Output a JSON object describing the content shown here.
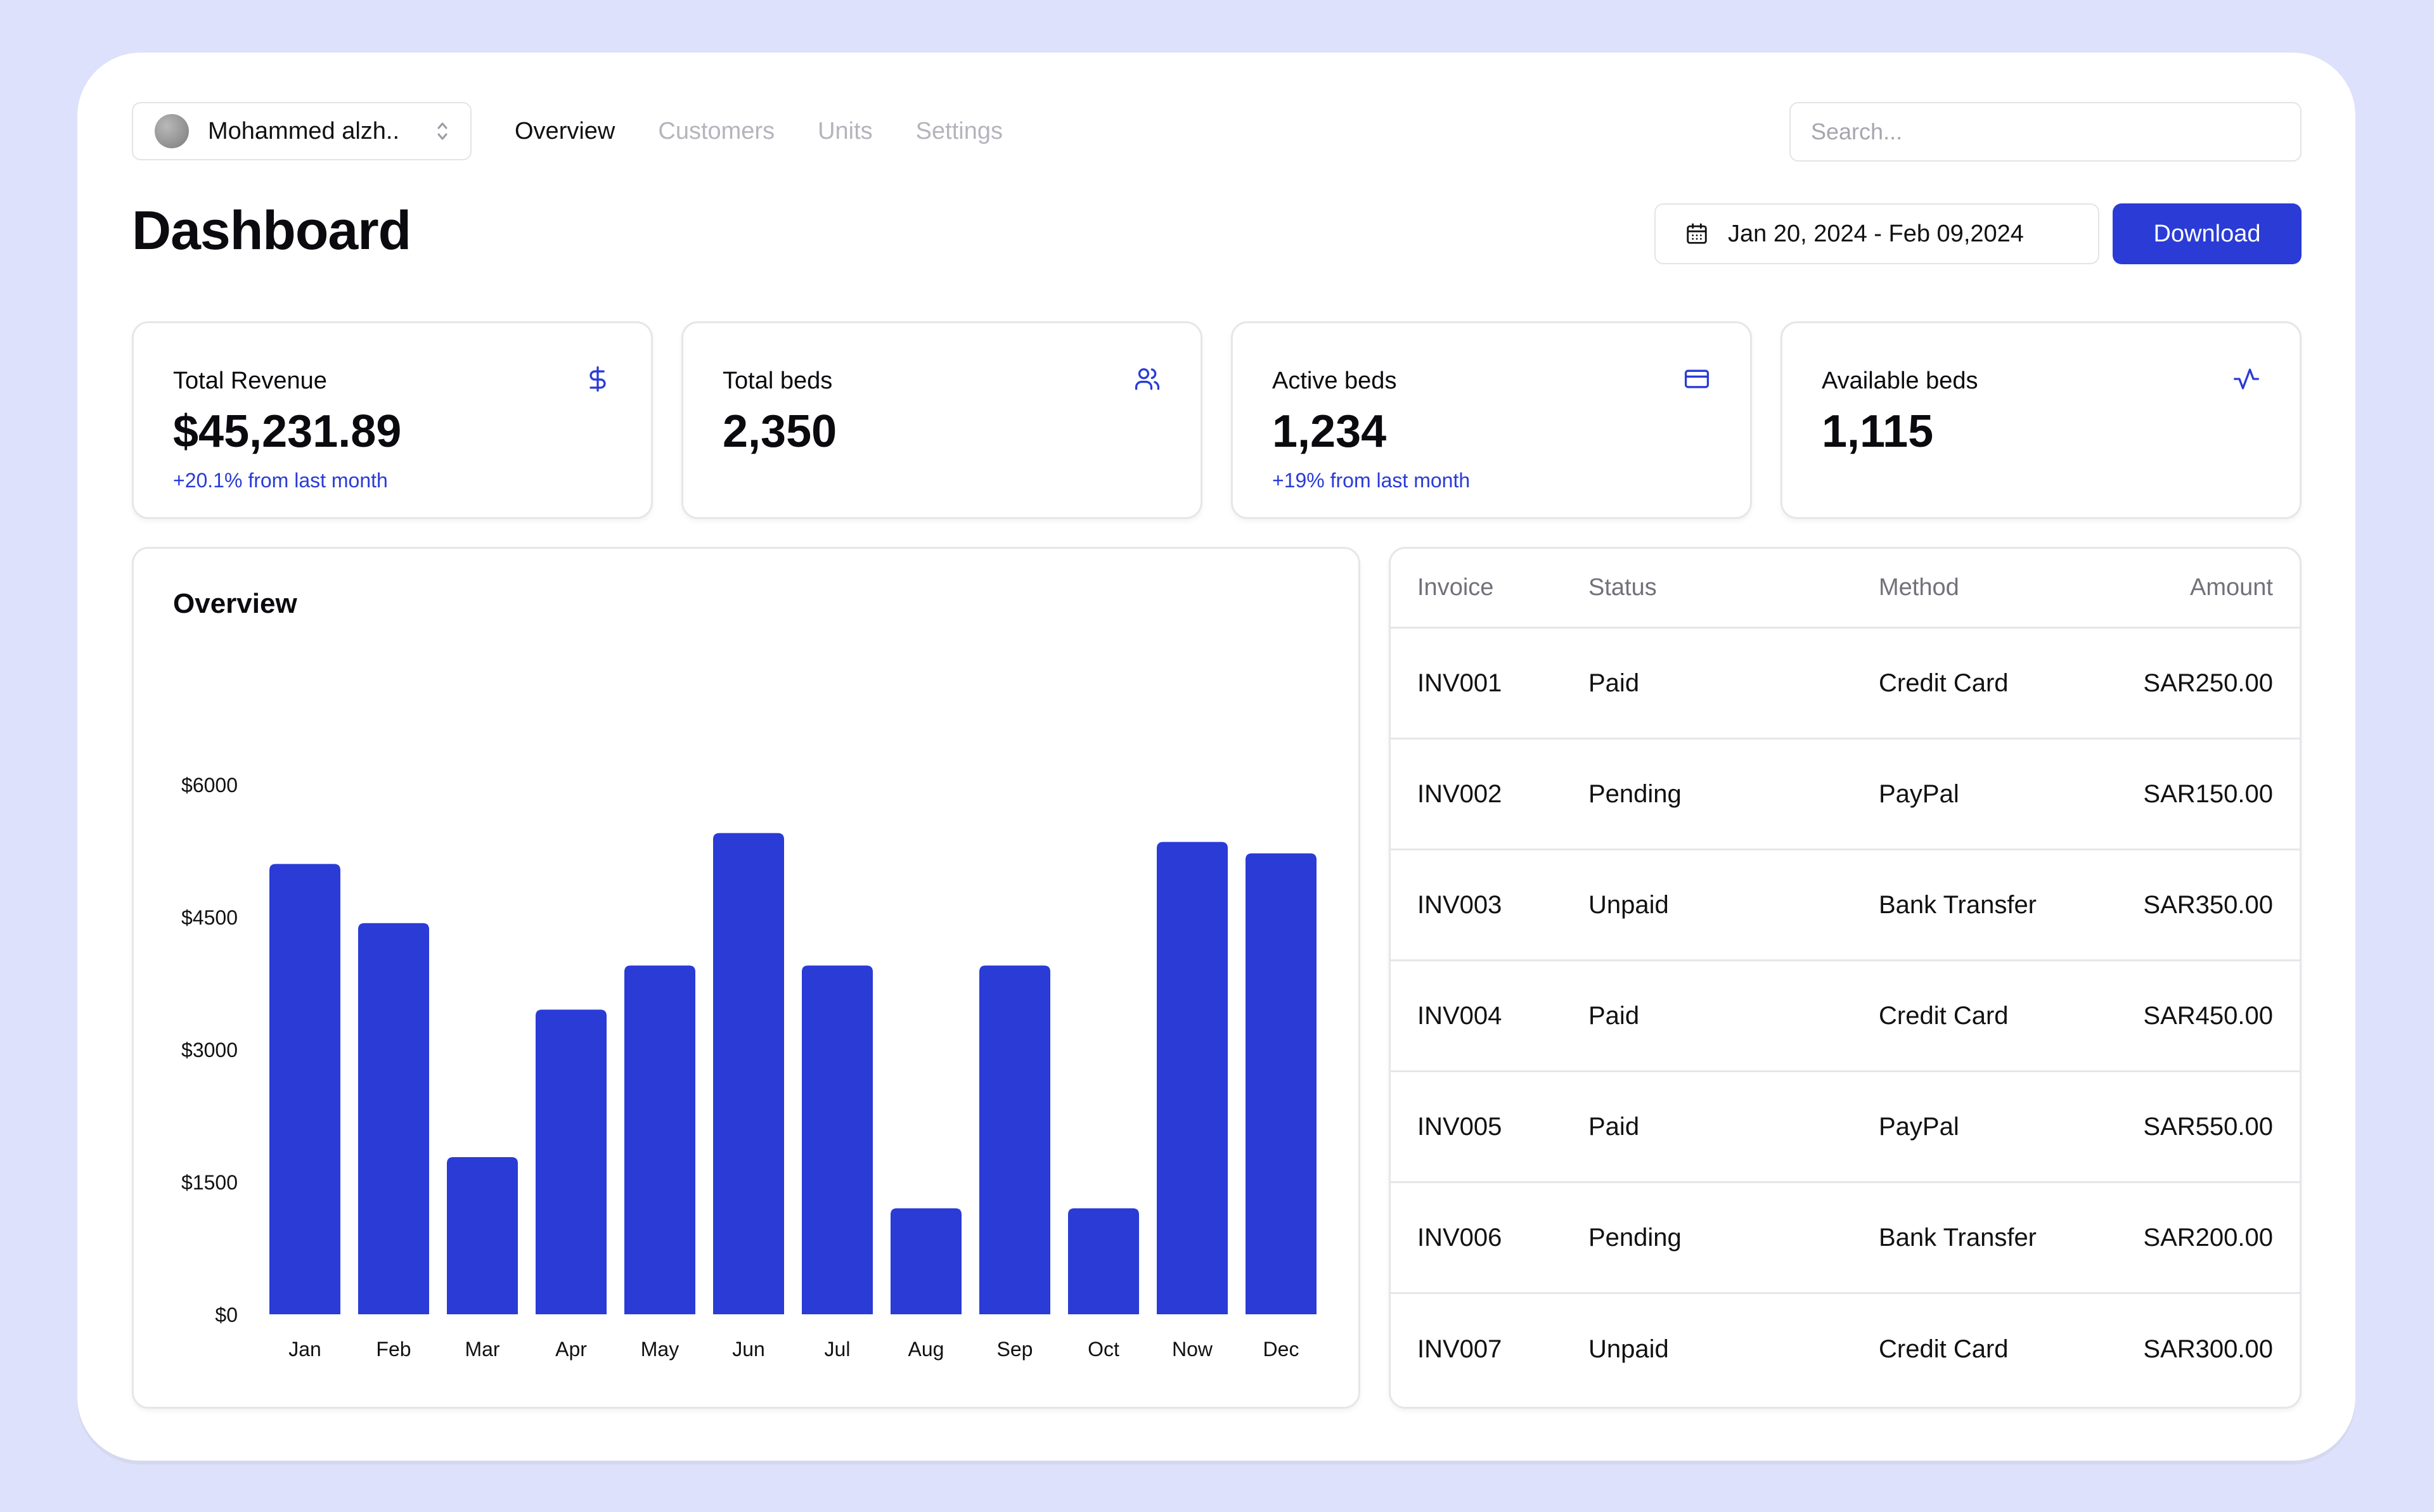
{
  "user": {
    "name": "Mohammed alzh.."
  },
  "nav": {
    "tabs": [
      "Overview",
      "Customers",
      "Units",
      "Settings"
    ]
  },
  "search": {
    "placeholder": "Search..."
  },
  "header": {
    "title": "Dashboard",
    "date_range": "Jan 20, 2024 - Feb 09,2024",
    "download_label": "Download"
  },
  "stats": [
    {
      "label": "Total Revenue",
      "value": "$45,231.89",
      "delta": "+20.1% from last month",
      "icon": "dollar-icon"
    },
    {
      "label": "Total beds",
      "value": "2,350",
      "delta": "",
      "icon": "users-icon"
    },
    {
      "label": "Active beds",
      "value": "1,234",
      "delta": "+19% from last month",
      "icon": "credit-card-icon"
    },
    {
      "label": "Available beds",
      "value": "1,115",
      "delta": "",
      "icon": "activity-icon"
    }
  ],
  "chart": {
    "title": "Overview"
  },
  "chart_data": {
    "type": "bar",
    "title": "Overview",
    "categories": [
      "Jan",
      "Feb",
      "Mar",
      "Apr",
      "May",
      "Jun",
      "Jul",
      "Aug",
      "Sep",
      "Oct",
      "Now",
      "Dec"
    ],
    "values": [
      5100,
      4430,
      1780,
      3450,
      3950,
      5450,
      3950,
      1200,
      3950,
      1200,
      5350,
      5220
    ],
    "yticks": [
      "$6000",
      "$4500",
      "$3000",
      "$1500",
      "$0"
    ],
    "ylim": [
      0,
      6000
    ],
    "xlabel": "",
    "ylabel": "",
    "bar_color": "#2a3bd6"
  },
  "table": {
    "headers": [
      "Invoice",
      "Status",
      "Method",
      "Amount"
    ],
    "rows": [
      [
        "INV001",
        "Paid",
        "Credit Card",
        "SAR250.00"
      ],
      [
        "INV002",
        "Pending",
        "PayPal",
        "SAR150.00"
      ],
      [
        "INV003",
        "Unpaid",
        "Bank Transfer",
        "SAR350.00"
      ],
      [
        "INV004",
        "Paid",
        "Credit Card",
        "SAR450.00"
      ],
      [
        "INV005",
        "Paid",
        "PayPal",
        "SAR550.00"
      ],
      [
        "INV006",
        "Pending",
        "Bank Transfer",
        "SAR200.00"
      ],
      [
        "INV007",
        "Unpaid",
        "Credit Card",
        "SAR300.00"
      ]
    ]
  },
  "colors": {
    "accent": "#2a3bd6",
    "background": "#dde1fb",
    "border": "#e6e6ea"
  }
}
